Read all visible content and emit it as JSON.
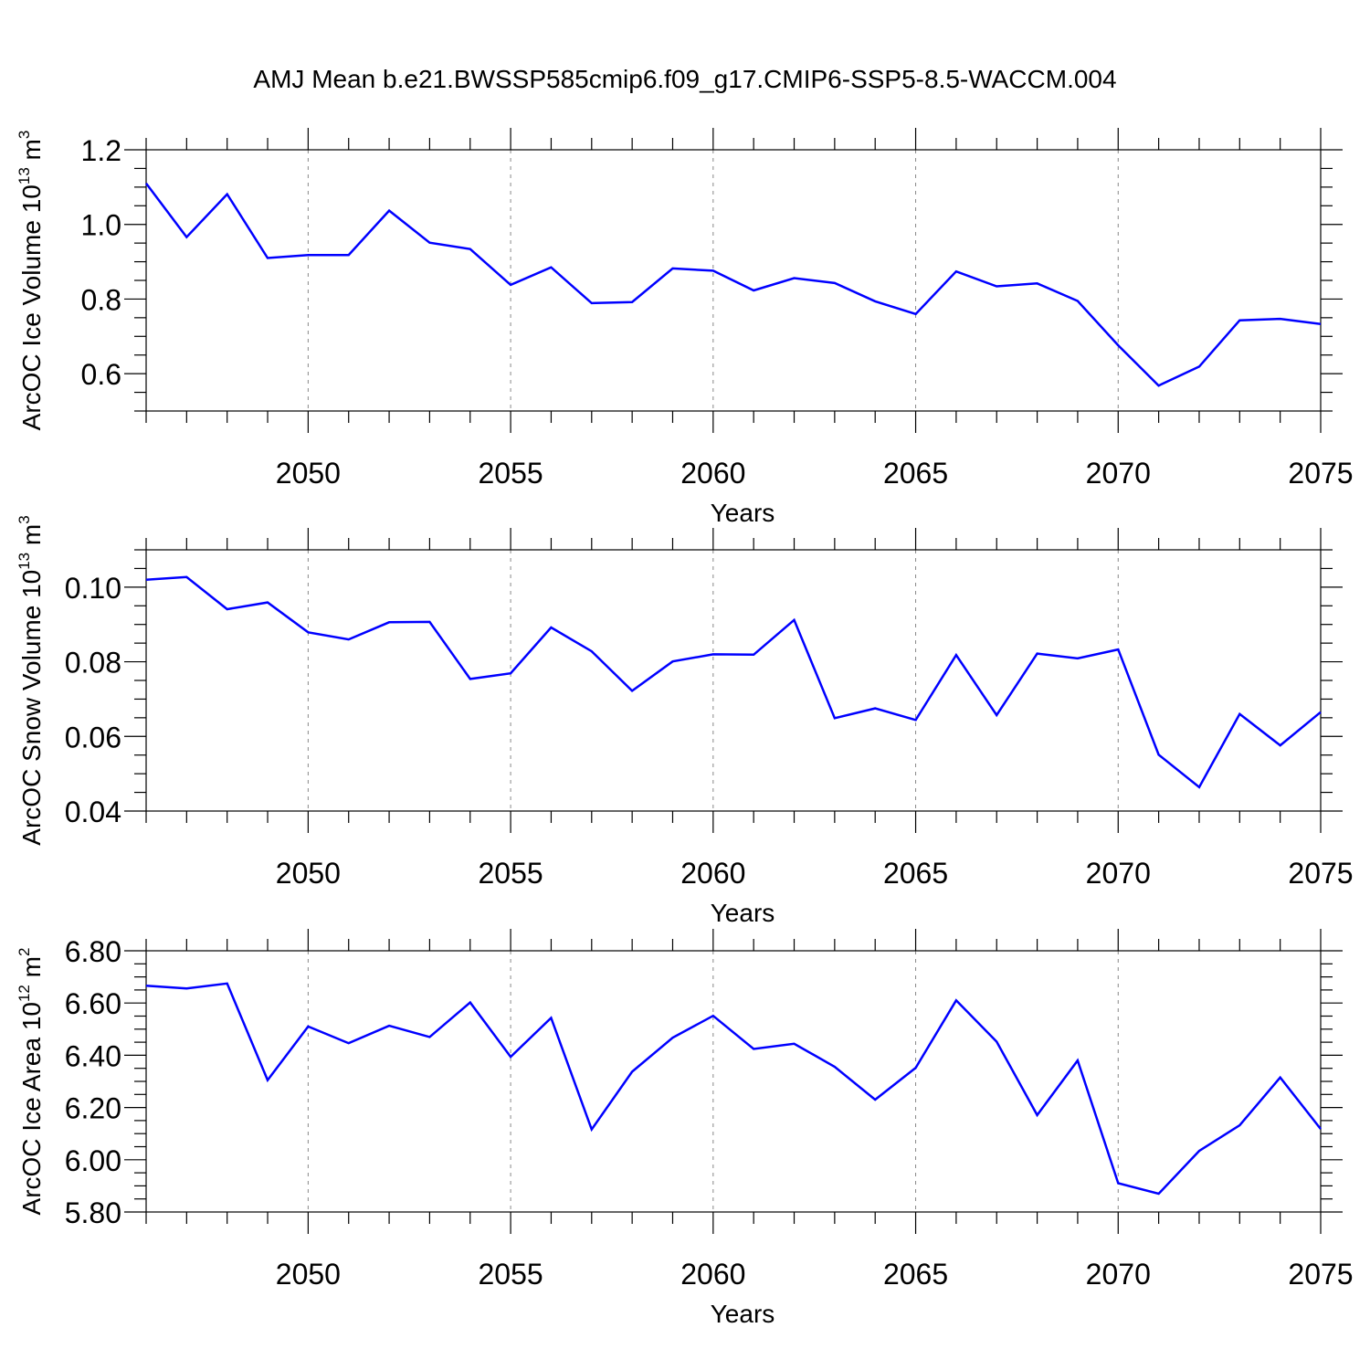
{
  "title": "AMJ Mean b.e21.BWSSP585cmip6.f09_g17.CMIP6-SSP5-8.5-WACCM.004",
  "line_color": "#0000ff",
  "chart_data": [
    {
      "type": "line",
      "xlabel": "Years",
      "ylabel": "ArcOC Ice Volume 10",
      "ylabel_exp": "13",
      "ylabel_unit": " m",
      "ylabel_unit_exp": "3",
      "xlim": [
        2046,
        2075
      ],
      "ylim": [
        0.5,
        1.2
      ],
      "y_major_ticks": [
        0.6,
        0.8,
        1.0,
        1.2
      ],
      "y_tick_labels": [
        "0.6",
        "0.8",
        "1.0",
        "1.2"
      ],
      "y_minor_step": 0.05,
      "x_major_ticks": [
        2050,
        2055,
        2060,
        2065,
        2070,
        2075
      ],
      "x_tick_labels": [
        "2050",
        "2055",
        "2060",
        "2065",
        "2070",
        "2075"
      ],
      "x_minor_step": 1,
      "grid": "vertical dashed at major x ticks",
      "x": [
        2046,
        2047,
        2048,
        2049,
        2050,
        2051,
        2052,
        2053,
        2054,
        2055,
        2056,
        2057,
        2058,
        2059,
        2060,
        2061,
        2062,
        2063,
        2064,
        2065,
        2066,
        2067,
        2068,
        2069,
        2070,
        2071,
        2072,
        2073,
        2074,
        2075
      ],
      "y": [
        1.11,
        0.966,
        1.081,
        0.91,
        0.918,
        0.918,
        1.037,
        0.951,
        0.934,
        0.838,
        0.885,
        0.789,
        0.792,
        0.882,
        0.876,
        0.823,
        0.856,
        0.843,
        0.794,
        0.76,
        0.874,
        0.834,
        0.842,
        0.795,
        0.676,
        0.568,
        0.619,
        0.743,
        0.747,
        0.733
      ]
    },
    {
      "type": "line",
      "xlabel": "Years",
      "ylabel": "ArcOC Snow Volume 10",
      "ylabel_exp": "13",
      "ylabel_unit": " m",
      "ylabel_unit_exp": "3",
      "xlim": [
        2046,
        2075
      ],
      "ylim": [
        0.04,
        0.11
      ],
      "y_major_ticks": [
        0.04,
        0.06,
        0.08,
        0.1
      ],
      "y_tick_labels": [
        "0.04",
        "0.06",
        "0.08",
        "0.10"
      ],
      "y_minor_step": 0.005,
      "x_major_ticks": [
        2050,
        2055,
        2060,
        2065,
        2070,
        2075
      ],
      "x_tick_labels": [
        "2050",
        "2055",
        "2060",
        "2065",
        "2070",
        "2075"
      ],
      "x_minor_step": 1,
      "grid": "vertical dashed at major x ticks",
      "x": [
        2046,
        2047,
        2048,
        2049,
        2050,
        2051,
        2052,
        2053,
        2054,
        2055,
        2056,
        2057,
        2058,
        2059,
        2060,
        2061,
        2062,
        2063,
        2064,
        2065,
        2066,
        2067,
        2068,
        2069,
        2070,
        2071,
        2072,
        2073,
        2074,
        2075
      ],
      "y": [
        0.102,
        0.1027,
        0.0941,
        0.0959,
        0.0879,
        0.086,
        0.0906,
        0.0907,
        0.0754,
        0.0769,
        0.0892,
        0.0828,
        0.0722,
        0.0801,
        0.082,
        0.0819,
        0.0912,
        0.0649,
        0.0675,
        0.0644,
        0.0818,
        0.0657,
        0.0822,
        0.0809,
        0.0833,
        0.0551,
        0.0464,
        0.066,
        0.0576,
        0.0665
      ]
    },
    {
      "type": "line",
      "xlabel": "Years",
      "ylabel": "ArcOC Ice Area 10",
      "ylabel_exp": "12",
      "ylabel_unit": " m",
      "ylabel_unit_exp": "2",
      "xlim": [
        2046,
        2075
      ],
      "ylim": [
        5.8,
        6.8
      ],
      "y_major_ticks": [
        5.8,
        6.0,
        6.2,
        6.4,
        6.6,
        6.8
      ],
      "y_tick_labels": [
        "5.80",
        "6.00",
        "6.20",
        "6.40",
        "6.60",
        "6.80"
      ],
      "y_minor_step": 0.05,
      "x_major_ticks": [
        2050,
        2055,
        2060,
        2065,
        2070,
        2075
      ],
      "x_tick_labels": [
        "2050",
        "2055",
        "2060",
        "2065",
        "2070",
        "2075"
      ],
      "x_minor_step": 1,
      "grid": "vertical dashed at major x ticks",
      "x": [
        2046,
        2047,
        2048,
        2049,
        2050,
        2051,
        2052,
        2053,
        2054,
        2055,
        2056,
        2057,
        2058,
        2059,
        2060,
        2061,
        2062,
        2063,
        2064,
        2065,
        2066,
        2067,
        2068,
        2069,
        2070,
        2071,
        2072,
        2073,
        2074,
        2075
      ],
      "y": [
        6.666,
        6.656,
        6.675,
        6.305,
        6.51,
        6.446,
        6.513,
        6.47,
        6.602,
        6.394,
        6.543,
        6.116,
        6.337,
        6.467,
        6.551,
        6.424,
        6.444,
        6.356,
        6.23,
        6.352,
        6.61,
        6.452,
        6.171,
        6.38,
        5.91,
        5.87,
        6.034,
        6.132,
        6.315,
        6.118
      ]
    }
  ]
}
